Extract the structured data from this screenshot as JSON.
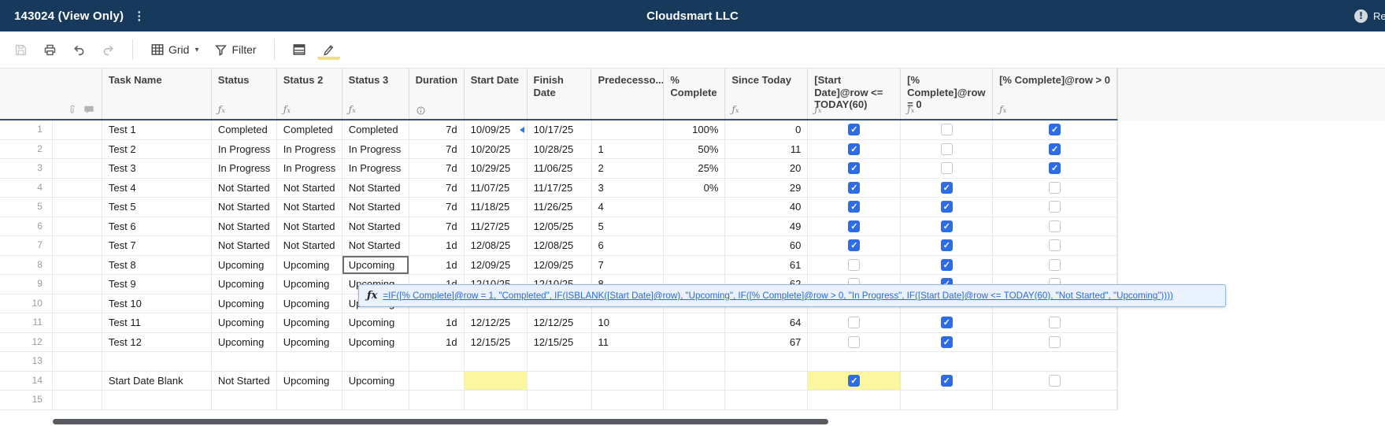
{
  "topbar": {
    "sheet_title": "143024 (View Only)",
    "company": "Cloudsmart LLC",
    "right_label": "Rep"
  },
  "toolbar": {
    "view_label": "Grid",
    "filter_label": "Filter"
  },
  "colors": {
    "topbar_bg": "#17395c",
    "header_underline": "#334f7d",
    "accent_blue": "#2c6ce6",
    "highlight_yellow": "#fbf7a0",
    "formula_link": "#2e68d9",
    "tooltip_bg": "#e9f2fd",
    "tooltip_border": "#90b7e8"
  },
  "tooltip": {
    "fx_icon": "fx-icon",
    "formula": "=IF([% Complete]@row = 1, \"Completed\", IF(ISBLANK([Start Date]@row), \"Upcoming\", IF([% Complete]@row > 0, \"In Progress\", IF([Start Date]@row <= TODAY(60), \"Not Started\", \"Upcoming\"))))"
  },
  "grid": {
    "columns": [
      {
        "id": "rownum",
        "label": "",
        "sub": ""
      },
      {
        "id": "attach",
        "label": "",
        "sub": "attach"
      },
      {
        "id": "task",
        "label": "Task Name",
        "sub": ""
      },
      {
        "id": "status",
        "label": "Status",
        "sub": "fx"
      },
      {
        "id": "status2",
        "label": "Status 2",
        "sub": "fx"
      },
      {
        "id": "status3",
        "label": "Status 3",
        "sub": "fx"
      },
      {
        "id": "duration",
        "label": "Duration",
        "sub": "info"
      },
      {
        "id": "start",
        "label": "Start Date",
        "sub": ""
      },
      {
        "id": "finish",
        "label": "Finish Date",
        "sub": ""
      },
      {
        "id": "pred",
        "label": "Predecesso...",
        "sub": ""
      },
      {
        "id": "pct",
        "label": "% Complete",
        "sub": ""
      },
      {
        "id": "since",
        "label": "Since Today",
        "sub": "fx"
      },
      {
        "id": "cbA",
        "label": "[Start Date]@row <= TODAY(60)",
        "sub": "fx"
      },
      {
        "id": "cbB",
        "label": "[% Complete]@row = 0",
        "sub": "fx"
      },
      {
        "id": "cbC",
        "label": "[% Complete]@row > 0",
        "sub": "fx"
      }
    ],
    "rows": [
      {
        "num": "1",
        "task": "Test 1",
        "status": "Completed",
        "status2": "Completed",
        "status3": "Completed",
        "duration": "7d",
        "start": "10/09/25",
        "finish": "10/17/25",
        "pred": "",
        "pct": "100%",
        "since": "0",
        "cbA": "on",
        "cbB": "off",
        "cbC": "on",
        "start_note": true
      },
      {
        "num": "2",
        "task": "Test 2",
        "status": "In Progress",
        "status2": "In Progress",
        "status3": "In Progress",
        "duration": "7d",
        "start": "10/20/25",
        "finish": "10/28/25",
        "pred": "1",
        "pct": "50%",
        "since": "11",
        "cbA": "on",
        "cbB": "off",
        "cbC": "on"
      },
      {
        "num": "3",
        "task": "Test 3",
        "status": "In Progress",
        "status2": "In Progress",
        "status3": "In Progress",
        "duration": "7d",
        "start": "10/29/25",
        "finish": "11/06/25",
        "pred": "2",
        "pct": "25%",
        "since": "20",
        "cbA": "on",
        "cbB": "off",
        "cbC": "on"
      },
      {
        "num": "4",
        "task": "Test 4",
        "status": "Not Started",
        "status2": "Not Started",
        "status3": "Not Started",
        "duration": "7d",
        "start": "11/07/25",
        "finish": "11/17/25",
        "pred": "3",
        "pct": "0%",
        "since": "29",
        "cbA": "on",
        "cbB": "on",
        "cbC": "off"
      },
      {
        "num": "5",
        "task": "Test 5",
        "status": "Not Started",
        "status2": "Not Started",
        "status3": "Not Started",
        "duration": "7d",
        "start": "11/18/25",
        "finish": "11/26/25",
        "pred": "4",
        "pct": "",
        "since": "40",
        "cbA": "on",
        "cbB": "on",
        "cbC": "off"
      },
      {
        "num": "6",
        "task": "Test 6",
        "status": "Not Started",
        "status2": "Not Started",
        "status3": "Not Started",
        "duration": "7d",
        "start": "11/27/25",
        "finish": "12/05/25",
        "pred": "5",
        "pct": "",
        "since": "49",
        "cbA": "on",
        "cbB": "on",
        "cbC": "off"
      },
      {
        "num": "7",
        "task": "Test 7",
        "status": "Not Started",
        "status2": "Not Started",
        "status3": "Not Started",
        "duration": "1d",
        "start": "12/08/25",
        "finish": "12/08/25",
        "pred": "6",
        "pct": "",
        "since": "60",
        "cbA": "on",
        "cbB": "on",
        "cbC": "off"
      },
      {
        "num": "8",
        "task": "Test 8",
        "status": "Upcoming",
        "status2": "Upcoming",
        "status3": "Upcoming",
        "duration": "1d",
        "start": "12/09/25",
        "finish": "12/09/25",
        "pred": "7",
        "pct": "",
        "since": "61",
        "cbA": "off",
        "cbB": "on",
        "cbC": "off",
        "selected": "status3"
      },
      {
        "num": "9",
        "task": "Test 9",
        "status": "Upcoming",
        "status2": "Upcoming",
        "status3": "Upcoming",
        "duration": "1d",
        "start": "12/10/25",
        "finish": "12/10/25",
        "pred": "8",
        "pct": "",
        "since": "62",
        "cbA": "off",
        "cbB": "on",
        "cbC": "off"
      },
      {
        "num": "10",
        "task": "Test 10",
        "status": "Upcoming",
        "status2": "Upcoming",
        "status3": "Upcoming",
        "duration": "",
        "start": "",
        "finish": "",
        "pred": "",
        "pct": "",
        "since": "",
        "cbA": "",
        "cbB": "",
        "cbC": ""
      },
      {
        "num": "11",
        "task": "Test 11",
        "status": "Upcoming",
        "status2": "Upcoming",
        "status3": "Upcoming",
        "duration": "1d",
        "start": "12/12/25",
        "finish": "12/12/25",
        "pred": "10",
        "pct": "",
        "since": "64",
        "cbA": "off",
        "cbB": "on",
        "cbC": "off"
      },
      {
        "num": "12",
        "task": "Test 12",
        "status": "Upcoming",
        "status2": "Upcoming",
        "status3": "Upcoming",
        "duration": "1d",
        "start": "12/15/25",
        "finish": "12/15/25",
        "pred": "11",
        "pct": "",
        "since": "67",
        "cbA": "off",
        "cbB": "on",
        "cbC": "off"
      },
      {
        "num": "13",
        "task": "",
        "status": "",
        "status2": "",
        "status3": "",
        "duration": "",
        "start": "",
        "finish": "",
        "pred": "",
        "pct": "",
        "since": "",
        "cbA": "",
        "cbB": "",
        "cbC": ""
      },
      {
        "num": "14",
        "task": "Start Date Blank",
        "status": "Not Started",
        "status2": "Upcoming",
        "status3": "Upcoming",
        "duration": "",
        "start": "",
        "finish": "",
        "pred": "",
        "pct": "",
        "since": "",
        "cbA": "on",
        "cbB": "on",
        "cbC": "off",
        "highlight": [
          "start",
          "cbA"
        ]
      },
      {
        "num": "15",
        "task": "",
        "status": "",
        "status2": "",
        "status3": "",
        "duration": "",
        "start": "",
        "finish": "",
        "pred": "",
        "pct": "",
        "since": "",
        "cbA": "",
        "cbB": "",
        "cbC": ""
      }
    ]
  }
}
